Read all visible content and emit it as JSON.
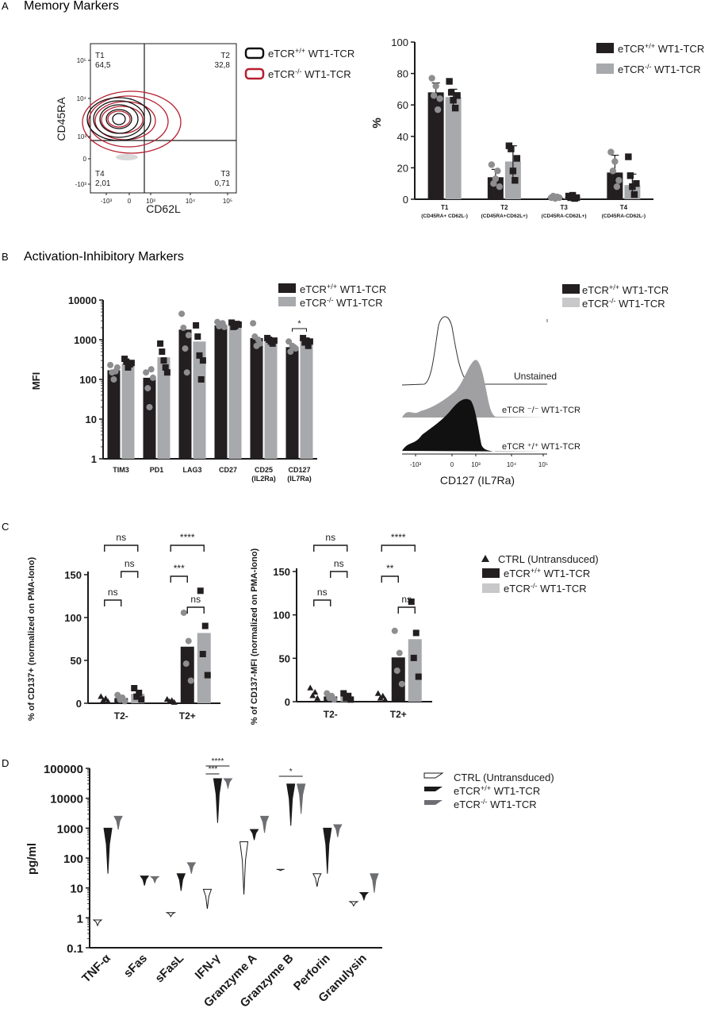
{
  "panels": {
    "A": {
      "letter": "A",
      "title": "Memory Markers"
    },
    "B": {
      "letter": "B",
      "title": "Activation-Inhibitory Markers"
    },
    "C": {
      "letter": "C"
    },
    "D": {
      "letter": "D"
    }
  },
  "legend": {
    "pos_base": "eTCR",
    "pos_sup": "+/+",
    "pos_tail": " WT1-TCR",
    "neg_base": "eTCR",
    "neg_sup": "-/-",
    "neg_tail": " WT1-TCR",
    "ctrl": "CTRL (Untransduced)"
  },
  "colors": {
    "pos": "#231f20",
    "neg": "#a7a9ac",
    "flow_pos": "#111111",
    "flow_neg": "#b51f2e"
  },
  "chart_data": [
    {
      "id": "A-flow",
      "type": "scatter",
      "xlabel": "CD62L",
      "ylabel": "CD45RA",
      "x_ticks": [
        "-10³",
        "0",
        "10³",
        "10⁴",
        "10⁵"
      ],
      "y_ticks": [
        "10⁵",
        "10⁴",
        "10³",
        "0",
        "-10³"
      ],
      "quadrants": [
        {
          "name": "T1",
          "value": "64,5"
        },
        {
          "name": "T2",
          "value": "32,8"
        },
        {
          "name": "T3",
          "value": "0,71"
        },
        {
          "name": "T4",
          "value": "2,01"
        }
      ]
    },
    {
      "id": "A-bar",
      "type": "bar",
      "ylabel": "%",
      "ylim": [
        0,
        100
      ],
      "y_ticks": [
        "0",
        "20",
        "40",
        "60",
        "80",
        "100"
      ],
      "categories": [
        {
          "label": "T1",
          "sub": "(CD45RA+ CD62L-)"
        },
        {
          "label": "T2",
          "sub": "(CD45RA+CD62L+)"
        },
        {
          "label": "T3",
          "sub": "(CD45RA-CD62L+)"
        },
        {
          "label": "T4",
          "sub": "(CD45RA-CD62L-)"
        }
      ],
      "series": [
        {
          "values": [
            68,
            14,
            1,
            17
          ],
          "err": [
            6,
            5,
            0.8,
            11
          ],
          "points": [
            [
              77,
              66,
              72,
              57,
              64
            ],
            [
              22,
              10,
              13,
              18,
              8
            ],
            [
              1,
              2,
              0.5,
              1.5,
              1
            ],
            [
              30,
              18,
              24,
              8,
              12
            ]
          ]
        },
        {
          "values": [
            65,
            24,
            1.5,
            9
          ],
          "err": [
            5,
            10,
            1,
            7
          ],
          "points": [
            [
              75,
              68,
              63,
              58,
              66
            ],
            [
              34,
              32,
              18,
              12,
              26
            ],
            [
              2,
              1,
              2.5,
              0.5,
              1
            ],
            [
              27,
              15,
              8,
              3,
              10
            ]
          ]
        }
      ]
    },
    {
      "id": "B-bar",
      "type": "bar",
      "ylabel": "MFI",
      "scale": "log",
      "ylim": [
        1,
        10000
      ],
      "y_ticks": [
        "10000",
        "1000",
        "100",
        "10",
        "1"
      ],
      "categories": [
        {
          "label": "TIM3",
          "sub": ""
        },
        {
          "label": "PD1",
          "sub": ""
        },
        {
          "label": "LAG3",
          "sub": ""
        },
        {
          "label": "CD27",
          "sub": ""
        },
        {
          "label": "CD25",
          "sub": "(IL2Ra)"
        },
        {
          "label": "CD127",
          "sub": "(IL7Ra)"
        }
      ],
      "series": [
        {
          "values": [
            170,
            110,
            1800,
            2300,
            1100,
            650
          ],
          "points": [
            [
              230,
              150,
              100,
              160,
              200
            ],
            [
              150,
              60,
              20,
              180,
              110
            ],
            [
              4500,
              2000,
              600,
              150,
              1300
            ],
            [
              2800,
              2200,
              2500,
              2600,
              2100
            ],
            [
              2600,
              1200,
              700,
              1000,
              800
            ],
            [
              900,
              500,
              700,
              650,
              600
            ]
          ]
        },
        {
          "values": [
            250,
            360,
            900,
            2200,
            950,
            900
          ],
          "points": [
            [
              330,
              280,
              200,
              240,
              260
            ],
            [
              800,
              500,
              300,
              200,
              150
            ],
            [
              2300,
              1200,
              400,
              100,
              300
            ],
            [
              2700,
              2100,
              2200,
              2500,
              2400
            ],
            [
              1100,
              1000,
              900,
              800,
              950
            ],
            [
              1100,
              850,
              950,
              700,
              900
            ]
          ]
        }
      ],
      "significance": [
        {
          "category": "CD127",
          "label": "*"
        }
      ]
    },
    {
      "id": "B-hist",
      "type": "area",
      "xlabel": "CD127 (IL7Ra)",
      "x_ticks": [
        "-10³",
        "0",
        "10³",
        "10⁴",
        "10⁵"
      ],
      "traces": [
        "Unstained",
        "eTCR ⁻/⁻ WT1-TCR",
        "eTCR ⁺/⁺ WT1-TCR"
      ]
    },
    {
      "id": "C-left",
      "type": "bar",
      "ylabel": "% of CD137+ (normalized on PMA-Iono)",
      "ylim": [
        0,
        150
      ],
      "y_ticks": [
        "0",
        "50",
        "100",
        "150"
      ],
      "categories": [
        "T2-",
        "T2+"
      ],
      "series": [
        {
          "name": "CTRL (Untransduced)",
          "values": [
            5,
            3
          ]
        },
        {
          "values": [
            6,
            66
          ]
        },
        {
          "values": [
            11,
            82
          ]
        }
      ],
      "significance": [
        "ns",
        "ns",
        "ns",
        "****",
        "***",
        "ns"
      ]
    },
    {
      "id": "C-right",
      "type": "bar",
      "ylabel": "% of CD137-MFI (normalized on PMA-Iono)",
      "ylim": [
        0,
        150
      ],
      "y_ticks": [
        "0",
        "50",
        "100",
        "150"
      ],
      "categories": [
        "T2-",
        "T2+"
      ],
      "series": [
        {
          "name": "CTRL (Untransduced)",
          "values": [
            10,
            6
          ]
        },
        {
          "values": [
            6,
            51
          ]
        },
        {
          "values": [
            6,
            72
          ]
        }
      ],
      "significance": [
        "ns",
        "ns",
        "ns",
        "****",
        "**",
        "ns"
      ]
    },
    {
      "id": "D",
      "type": "violin",
      "ylabel": "pg/ml",
      "scale": "log",
      "ylim": [
        0.1,
        100000
      ],
      "y_ticks": [
        "100000",
        "10000",
        "1000",
        "100",
        "10",
        "1",
        "0.1"
      ],
      "categories": [
        "TNF-α",
        "sFas",
        "sFasL",
        "IFN-γ",
        "Granzyme A",
        "Granzyme B",
        "Perforin",
        "Granulysin"
      ],
      "series": [
        {
          "name": "CTRL (Untransduced)",
          "ranges": [
            [
              0.55,
              0.85
            ],
            null,
            [
              1.1,
              1.5
            ],
            [
              2,
              9
            ],
            [
              6,
              350
            ],
            [
              38,
              42
            ],
            [
              11,
              30
            ],
            [
              2.5,
              3.5
            ]
          ]
        },
        {
          "ranges": [
            [
              30,
              1000
            ],
            [
              12,
              25
            ],
            [
              8,
              30
            ],
            [
              1500,
              45000
            ],
            [
              400,
              900
            ],
            [
              1200,
              30000
            ],
            [
              30,
              1000
            ],
            [
              4,
              7
            ]
          ]
        },
        {
          "ranges": [
            [
              900,
              2500
            ],
            [
              15,
              24
            ],
            [
              30,
              70
            ],
            [
              22000,
              45000
            ],
            [
              700,
              2500
            ],
            [
              3000,
              30000
            ],
            [
              500,
              1300
            ],
            [
              7,
              30
            ]
          ]
        }
      ],
      "significance": [
        {
          "category": "IFN-γ",
          "labels": [
            "****",
            "***"
          ]
        },
        {
          "category": "Granzyme B",
          "labels": [
            "*"
          ]
        }
      ]
    }
  ]
}
